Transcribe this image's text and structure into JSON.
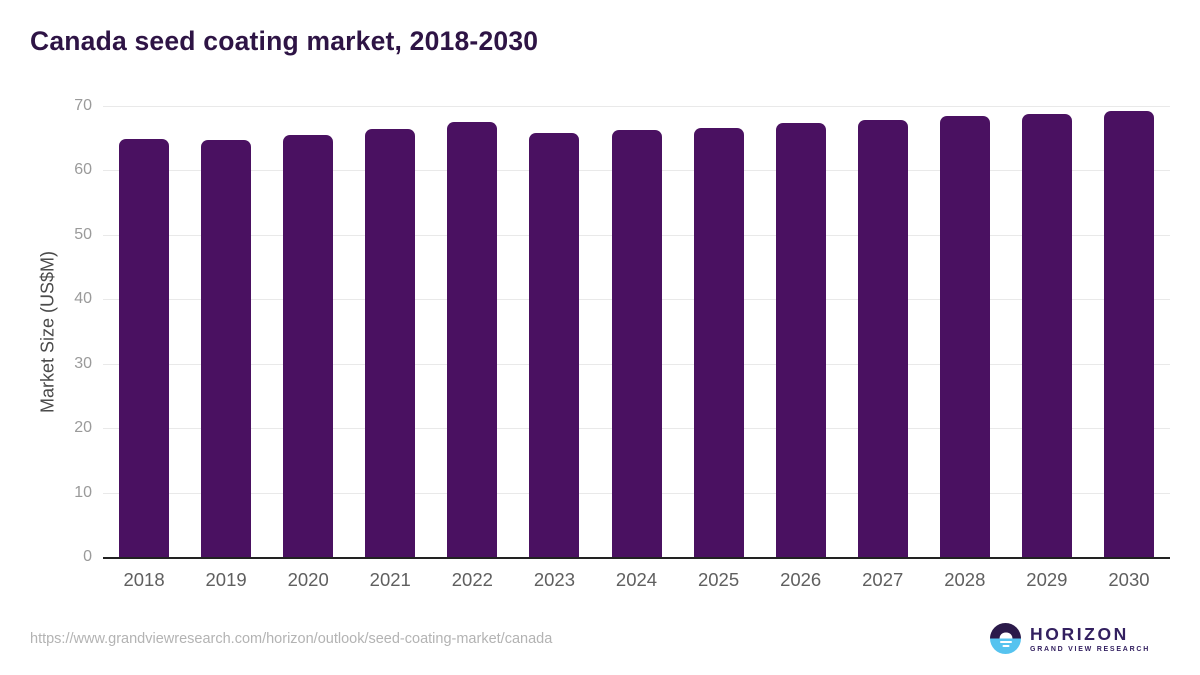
{
  "chart_data": {
    "type": "bar",
    "title": "Canada seed coating market, 2018-2030",
    "categories": [
      "2018",
      "2019",
      "2020",
      "2021",
      "2022",
      "2023",
      "2024",
      "2025",
      "2026",
      "2027",
      "2028",
      "2029",
      "2030"
    ],
    "values": [
      64.9,
      64.7,
      65.5,
      66.5,
      67.5,
      65.8,
      66.3,
      66.6,
      67.3,
      67.8,
      68.4,
      68.7,
      69.3
    ],
    "xlabel": "",
    "ylabel": "Market Size (US$M)",
    "ylim": [
      0,
      70
    ],
    "ytick_step": 10,
    "yticks": [
      0,
      10,
      20,
      30,
      40,
      50,
      60,
      70
    ],
    "grid": "horizontal",
    "legend": "none",
    "bar_color": "#4a1161"
  },
  "colors": {
    "title": "#2e1445",
    "bar": "#4a1161",
    "gridline": "#e9e9e9",
    "axis_line": "#222222",
    "y_tick": "#9a9a9a",
    "x_tick": "#5f5f5f",
    "logo_purple": "#2b1a4a",
    "logo_blue": "#56c3ef"
  },
  "footer": {
    "source_url": "https://www.grandviewresearch.com/horizon/outlook/seed-coating-market/canada",
    "logo": {
      "brand": "HORIZON",
      "tagline": "GRAND VIEW RESEARCH"
    }
  }
}
